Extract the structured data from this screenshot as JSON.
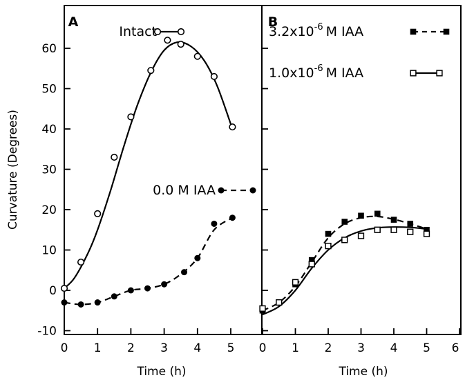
{
  "chart_data": [
    {
      "type": "line",
      "panel": "A",
      "xlabel": "Time (h)",
      "ylabel": "Curvature (Degrees)",
      "xlim": [
        0,
        5.8
      ],
      "ylim": [
        -10,
        66
      ],
      "x_ticks": [
        0,
        1,
        2,
        3,
        4,
        5
      ],
      "y_ticks": [
        -10,
        0,
        10,
        20,
        30,
        40,
        50,
        60
      ],
      "series": [
        {
          "name": "Intact",
          "marker": "open-circle",
          "line": "solid",
          "points": [
            [
              0,
              0.5
            ],
            [
              0.5,
              7
            ],
            [
              1,
              19
            ],
            [
              1.5,
              33
            ],
            [
              2,
              43
            ],
            [
              2.6,
              54.5
            ],
            [
              3.1,
              62
            ],
            [
              3.5,
              61
            ],
            [
              4,
              58
            ],
            [
              4.5,
              53
            ],
            [
              5.05,
              40.5
            ]
          ],
          "fit": [
            [
              0,
              0.5
            ],
            [
              0.3,
              3
            ],
            [
              0.7,
              9
            ],
            [
              1,
              15
            ],
            [
              1.4,
              25
            ],
            [
              1.8,
              36
            ],
            [
              2.2,
              46
            ],
            [
              2.6,
              54
            ],
            [
              3,
              59.5
            ],
            [
              3.4,
              61.5
            ],
            [
              3.8,
              60.5
            ],
            [
              4.2,
              57
            ],
            [
              4.6,
              50.5
            ],
            [
              5.05,
              40
            ]
          ]
        },
        {
          "name": "0.0 M IAA",
          "marker": "filled-circle",
          "line": "dashed",
          "points": [
            [
              0,
              -3
            ],
            [
              0.5,
              -3.5
            ],
            [
              1,
              -3
            ],
            [
              1.5,
              -1.5
            ],
            [
              2,
              0
            ],
            [
              2.5,
              0.5
            ],
            [
              3,
              1.5
            ],
            [
              3.6,
              4.5
            ],
            [
              4,
              8
            ],
            [
              4.5,
              16.5
            ],
            [
              5.05,
              18
            ]
          ],
          "fit": [
            [
              0,
              -3
            ],
            [
              0.5,
              -3.5
            ],
            [
              1,
              -3
            ],
            [
              1.5,
              -1.5
            ],
            [
              2,
              0
            ],
            [
              2.5,
              0.5
            ],
            [
              3,
              1.5
            ],
            [
              3.5,
              4
            ],
            [
              4,
              8
            ],
            [
              4.5,
              15
            ],
            [
              5.05,
              18
            ]
          ]
        }
      ]
    },
    {
      "type": "line",
      "panel": "B",
      "xlabel": "Time (h)",
      "ylabel": "",
      "xlim": [
        0,
        6
      ],
      "ylim": [
        -10,
        66
      ],
      "x_ticks": [
        0,
        1,
        2,
        3,
        4,
        5,
        6
      ],
      "series": [
        {
          "name": "3.2x10-6M IAA",
          "legend": {
            "base": "3.2x10",
            "exp": "-6",
            "unit": "M IAA"
          },
          "marker": "filled-square",
          "line": "dashed",
          "points": [
            [
              0,
              -5
            ],
            [
              0.5,
              -3
            ],
            [
              1,
              1.5
            ],
            [
              1.5,
              7.5
            ],
            [
              2,
              14
            ],
            [
              2.5,
              17
            ],
            [
              3,
              18.5
            ],
            [
              3.5,
              19
            ],
            [
              4,
              17.5
            ],
            [
              4.5,
              16.5
            ],
            [
              5,
              15
            ]
          ],
          "fit": [
            [
              0,
              -5
            ],
            [
              0.5,
              -3
            ],
            [
              1,
              1
            ],
            [
              1.5,
              7
            ],
            [
              2,
              13
            ],
            [
              2.5,
              16.5
            ],
            [
              3,
              18
            ],
            [
              3.5,
              18.3
            ],
            [
              4,
              17.6
            ],
            [
              4.5,
              16.5
            ],
            [
              5,
              15.2
            ]
          ]
        },
        {
          "name": "1.0x10-6M IAA",
          "legend": {
            "base": "1.0x10",
            "exp": "-6",
            "unit": "M IAA"
          },
          "marker": "open-square",
          "line": "solid",
          "points": [
            [
              0,
              -4.5
            ],
            [
              0.5,
              -3
            ],
            [
              1,
              2
            ],
            [
              1.5,
              6.5
            ],
            [
              2,
              11
            ],
            [
              2.5,
              12.5
            ],
            [
              3,
              13.5
            ],
            [
              3.5,
              15
            ],
            [
              4,
              15
            ],
            [
              4.5,
              14.5
            ],
            [
              5,
              14
            ]
          ],
          "fit": [
            [
              0,
              -6
            ],
            [
              0.5,
              -4
            ],
            [
              1,
              0
            ],
            [
              1.5,
              5.5
            ],
            [
              2,
              10
            ],
            [
              2.5,
              13
            ],
            [
              3,
              14.7
            ],
            [
              3.5,
              15.5
            ],
            [
              4,
              15.7
            ],
            [
              4.5,
              15.6
            ],
            [
              5,
              15.2
            ]
          ]
        }
      ]
    }
  ]
}
